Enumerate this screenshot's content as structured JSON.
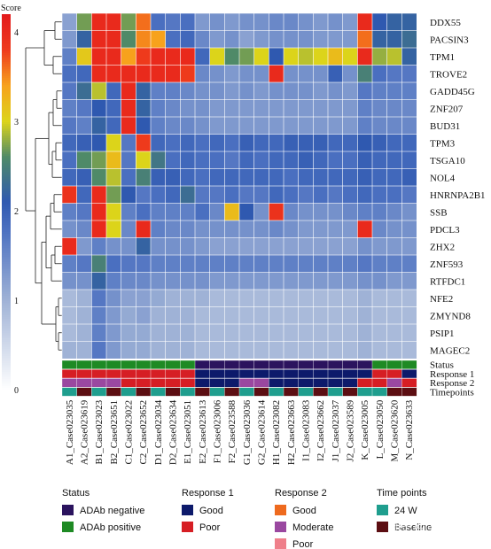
{
  "colorbar": {
    "title": "Score",
    "ticks": [
      4,
      3,
      2,
      1,
      0
    ],
    "range": [
      0,
      4.2
    ],
    "stops": [
      {
        "v": 0,
        "c": "#ffffff"
      },
      {
        "v": 1.0,
        "c": "#9fb2d6"
      },
      {
        "v": 1.8,
        "c": "#4a6fc0"
      },
      {
        "v": 2.1,
        "c": "#2f59b0"
      },
      {
        "v": 2.6,
        "c": "#4f8a68"
      },
      {
        "v": 3.0,
        "c": "#dcd41a"
      },
      {
        "v": 3.4,
        "c": "#f7a21c"
      },
      {
        "v": 3.8,
        "c": "#ee3a1c"
      },
      {
        "v": 4.2,
        "c": "#e31a1c"
      }
    ]
  },
  "chart_data": {
    "type": "heatmap",
    "rows": [
      "DDX55",
      "PACSIN3",
      "TPM1",
      "TROVE2",
      "GADD45G",
      "ZNF207",
      "BUD31",
      "TPM3",
      "TSGA10",
      "NOL4",
      "HNRNPA2B1",
      "SSB",
      "PDCL3",
      "ZHX2",
      "ZNF593",
      "RTFDC1",
      "NFE2",
      "ZMYND8",
      "PSIP1",
      "MAGEC2"
    ],
    "columns": [
      "A1_Case023035",
      "A2_Case023619",
      "B1_Case023023",
      "B2_Case023651",
      "C1_Case023022",
      "C2_Case023652",
      "D1_Case023034",
      "D2_Case023634",
      "E1_Case023051",
      "E2_Case023613",
      "F1_Case023006",
      "F2_Case023588",
      "G1_Case023036",
      "G2_Case023614",
      "H1_Case023082",
      "H2_Case023663",
      "I1_Case023083",
      "I2_Case023662",
      "J1_Case023037",
      "J2_Case023589",
      "K_Case023005",
      "L_Case023050",
      "M_Case023620",
      "N_Case023633"
    ],
    "values": [
      [
        1.2,
        2.7,
        4.0,
        4.0,
        2.7,
        3.6,
        1.8,
        1.7,
        1.8,
        1.3,
        1.4,
        1.3,
        1.4,
        1.4,
        1.5,
        1.5,
        1.4,
        1.3,
        1.4,
        1.3,
        4.0,
        2.1,
        2.2,
        2.2
      ],
      [
        1.3,
        2.2,
        4.0,
        4.0,
        2.6,
        3.5,
        3.4,
        1.8,
        1.9,
        1.5,
        1.3,
        1.4,
        1.2,
        1.3,
        1.4,
        1.4,
        1.4,
        1.3,
        1.3,
        1.3,
        3.6,
        2.2,
        2.2,
        2.3
      ],
      [
        1.6,
        3.1,
        4.0,
        4.0,
        3.4,
        3.8,
        4.0,
        4.0,
        4.0,
        1.9,
        3.0,
        2.6,
        2.7,
        3.0,
        2.1,
        3.0,
        2.9,
        3.0,
        3.2,
        3.0,
        4.0,
        2.8,
        2.9,
        2.2
      ],
      [
        1.8,
        1.9,
        4.0,
        4.0,
        4.0,
        4.0,
        4.0,
        4.0,
        3.8,
        1.5,
        1.4,
        1.3,
        1.4,
        1.4,
        4.0,
        1.4,
        1.4,
        1.4,
        2.0,
        1.4,
        2.5,
        1.8,
        1.7,
        1.7
      ],
      [
        1.7,
        2.3,
        2.9,
        1.9,
        4.0,
        2.2,
        1.6,
        1.6,
        1.5,
        1.4,
        1.4,
        1.3,
        1.4,
        1.3,
        1.4,
        1.4,
        1.4,
        1.3,
        1.4,
        1.3,
        1.7,
        1.6,
        1.6,
        1.6
      ],
      [
        1.6,
        1.7,
        2.1,
        1.9,
        4.0,
        2.2,
        1.6,
        1.5,
        1.4,
        1.4,
        1.3,
        1.3,
        1.3,
        1.3,
        1.3,
        1.3,
        1.3,
        1.3,
        1.3,
        1.3,
        1.6,
        1.5,
        1.5,
        1.5
      ],
      [
        1.7,
        1.6,
        2.2,
        1.9,
        4.0,
        2.1,
        1.6,
        1.5,
        1.5,
        1.4,
        1.3,
        1.3,
        1.3,
        1.3,
        1.3,
        1.3,
        1.3,
        1.3,
        1.3,
        1.3,
        1.6,
        1.5,
        1.5,
        1.5
      ],
      [
        1.9,
        2.0,
        2.1,
        3.0,
        1.7,
        3.8,
        1.9,
        1.8,
        1.9,
        1.8,
        1.9,
        1.8,
        2.0,
        1.9,
        1.9,
        2.0,
        2.0,
        2.0,
        1.9,
        1.9,
        2.1,
        2.0,
        1.9,
        1.9
      ],
      [
        1.8,
        2.6,
        2.7,
        3.2,
        1.7,
        3.0,
        2.4,
        1.8,
        1.9,
        1.8,
        1.8,
        1.7,
        1.9,
        1.8,
        1.9,
        1.9,
        2.0,
        1.9,
        1.8,
        1.8,
        2.0,
        1.9,
        1.9,
        1.9
      ],
      [
        1.9,
        2.0,
        2.6,
        2.9,
        1.8,
        2.5,
        2.0,
        2.0,
        1.9,
        1.8,
        1.9,
        1.9,
        1.9,
        1.9,
        1.9,
        1.8,
        1.9,
        1.9,
        1.9,
        1.9,
        2.0,
        1.9,
        1.9,
        2.0
      ],
      [
        3.9,
        1.9,
        4.0,
        2.7,
        2.1,
        1.7,
        1.8,
        1.9,
        2.3,
        1.7,
        1.7,
        1.8,
        1.7,
        1.7,
        1.9,
        1.8,
        1.7,
        1.8,
        1.7,
        1.8,
        1.9,
        1.8,
        1.8,
        1.7
      ],
      [
        1.6,
        1.7,
        4.0,
        3.0,
        1.6,
        1.8,
        1.6,
        1.6,
        1.6,
        1.8,
        1.5,
        3.2,
        2.1,
        1.4,
        3.9,
        1.5,
        1.4,
        1.4,
        1.4,
        1.5,
        1.6,
        1.6,
        1.5,
        1.4
      ],
      [
        1.4,
        1.5,
        4.0,
        3.0,
        1.5,
        4.0,
        1.6,
        1.5,
        1.5,
        1.4,
        1.4,
        1.4,
        1.4,
        1.4,
        1.5,
        1.4,
        1.3,
        1.3,
        1.3,
        1.3,
        4.0,
        1.5,
        1.4,
        1.4
      ],
      [
        4.0,
        1.3,
        1.6,
        1.4,
        1.4,
        2.2,
        1.4,
        1.4,
        1.4,
        1.3,
        1.2,
        1.2,
        1.2,
        1.2,
        1.2,
        1.2,
        1.2,
        1.2,
        1.2,
        1.2,
        1.4,
        1.3,
        1.3,
        1.3
      ],
      [
        1.6,
        1.7,
        2.5,
        1.8,
        1.7,
        1.7,
        1.6,
        1.6,
        1.6,
        1.6,
        1.6,
        1.6,
        1.6,
        1.6,
        1.6,
        1.6,
        1.6,
        1.6,
        1.6,
        1.6,
        1.7,
        1.6,
        1.6,
        1.6
      ],
      [
        1.4,
        1.4,
        2.2,
        1.6,
        1.5,
        1.5,
        1.4,
        1.4,
        1.4,
        1.4,
        1.3,
        1.3,
        1.3,
        1.3,
        1.3,
        1.3,
        1.3,
        1.3,
        1.3,
        1.3,
        1.4,
        1.4,
        1.3,
        1.3
      ],
      [
        0.9,
        1.0,
        1.7,
        1.4,
        1.2,
        1.2,
        1.1,
        1.0,
        1.0,
        1.0,
        0.9,
        0.9,
        0.9,
        0.9,
        0.9,
        0.9,
        0.9,
        0.9,
        0.9,
        0.9,
        1.0,
        0.9,
        0.9,
        0.9
      ],
      [
        0.9,
        1.0,
        1.6,
        1.3,
        1.1,
        1.2,
        1.0,
        1.0,
        1.0,
        0.9,
        0.9,
        0.9,
        0.9,
        0.9,
        0.9,
        0.9,
        0.9,
        0.9,
        0.9,
        0.9,
        1.0,
        0.9,
        0.9,
        0.9
      ],
      [
        0.9,
        1.0,
        1.6,
        1.3,
        1.1,
        1.1,
        1.0,
        1.0,
        1.0,
        0.9,
        0.9,
        0.9,
        0.9,
        0.9,
        0.9,
        0.9,
        0.9,
        0.9,
        0.9,
        0.9,
        1.0,
        0.9,
        0.9,
        0.9
      ],
      [
        1.0,
        1.0,
        1.7,
        1.3,
        1.1,
        1.1,
        1.0,
        1.0,
        1.0,
        0.9,
        0.9,
        0.9,
        0.9,
        0.9,
        0.9,
        0.9,
        0.9,
        0.9,
        0.9,
        0.9,
        1.0,
        0.9,
        0.9,
        0.9
      ]
    ],
    "annotations": [
      {
        "name": "Status",
        "values": [
          "pos",
          "pos",
          "pos",
          "pos",
          "pos",
          "pos",
          "pos",
          "pos",
          "pos",
          "neg",
          "neg",
          "neg",
          "neg",
          "neg",
          "neg",
          "neg",
          "neg",
          "neg",
          "neg",
          "neg",
          "neg",
          "pos",
          "pos",
          "pos"
        ]
      },
      {
        "name": "Response 1",
        "values": [
          "poor",
          "poor",
          "poor",
          "poor",
          "poor",
          "poor",
          "poor",
          "poor",
          "poor",
          "good",
          "good",
          "good",
          "good",
          "good",
          "good",
          "good",
          "good",
          "good",
          "good",
          "good",
          "good",
          "poor",
          "poor",
          "good"
        ]
      },
      {
        "name": "Response 2",
        "values": [
          "modg",
          "modg",
          "modg",
          "modg",
          "poor",
          "poor",
          "poor",
          "poor",
          "poor",
          "good",
          "good",
          "good",
          "mod",
          "mod",
          "good",
          "good",
          "good",
          "good",
          "good",
          "good",
          "poor",
          "poor",
          "mod",
          "poor"
        ]
      },
      {
        "name": "Timepoints",
        "values": [
          "24w",
          "base",
          "24w",
          "base",
          "24w",
          "base",
          "24w",
          "base",
          "24w",
          "base",
          "24w",
          "base",
          "24w",
          "base",
          "24w",
          "base",
          "24w",
          "base",
          "24w",
          "base",
          "24w",
          "24w",
          "base",
          "base"
        ]
      }
    ],
    "annotation_colors": {
      "pos": "#1e8a24",
      "neg": "#2b135e",
      "poor": "#d61e24",
      "good": "#0d1a6b",
      "modg": "#9a48a0",
      "mod": "#9a48a0",
      "24w": "#1f9e8e",
      "base": "#5c0e12"
    }
  },
  "legend": {
    "groups": [
      {
        "title": "Status",
        "items": [
          {
            "label": "ADAb negative",
            "color": "#2b135e"
          },
          {
            "label": "ADAb positive",
            "color": "#1e8a24"
          }
        ]
      },
      {
        "title": "Response 1",
        "items": [
          {
            "label": "Good",
            "color": "#0d1a6b"
          },
          {
            "label": "Poor",
            "color": "#d61e24"
          }
        ]
      },
      {
        "title": "Response 2",
        "items": [
          {
            "label": "Good",
            "color": "#ee6a1e"
          },
          {
            "label": "Moderate",
            "color": "#9a48a0"
          },
          {
            "label": "Poor",
            "color": "#ef7f8a"
          }
        ]
      },
      {
        "title": "Time points",
        "items": [
          {
            "label": "24 W",
            "color": "#1f9e8e"
          },
          {
            "label": "Baseline",
            "color": "#5c0e12"
          }
        ]
      }
    ]
  },
  "watermark": "知乎 @labex"
}
